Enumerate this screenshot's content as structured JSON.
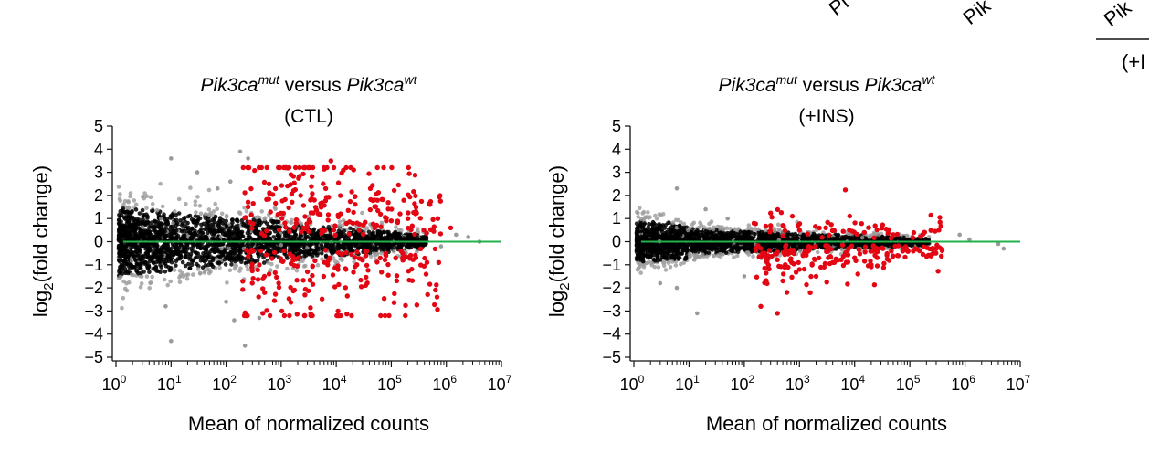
{
  "clipped_text": {
    "a": "Pi",
    "b": "Pik",
    "c": "Pik",
    "d": "(+I"
  },
  "colors": {
    "background_points": "#000000",
    "faded_points": "#9a9a9a",
    "significant_points": "#e30613",
    "reference_line": "#22b14c"
  },
  "chart_data": [
    {
      "type": "scatter",
      "title_parts": {
        "gene1": "Pik3ca",
        "sup1": "mut",
        "versus": " versus ",
        "gene2": "Pik3ca",
        "sup2": "wt"
      },
      "subtitle": "(CTL)",
      "xlabel": "Mean of normalized counts",
      "ylabel_parts": {
        "pre": "log",
        "sub": "2",
        "post": "(fold change)"
      },
      "x_scale": "log10",
      "xlim": [
        1,
        10000000
      ],
      "ylim": [
        -5,
        5
      ],
      "x_tick_bases": [
        "10",
        "10",
        "10",
        "10",
        "10",
        "10",
        "10",
        "10"
      ],
      "x_tick_exps": [
        "0",
        "1",
        "2",
        "3",
        "4",
        "5",
        "6",
        "7"
      ],
      "y_ticks": [
        "5",
        "4",
        "3",
        "2",
        "1",
        "0",
        "-1",
        "-2",
        "-3",
        "-4",
        "-5"
      ],
      "reference_line_y": 0,
      "series": [
        {
          "role": "all genes",
          "color": "#000000"
        },
        {
          "role": "significant",
          "color": "#e30613"
        }
      ],
      "sample_points": {
        "significant": [
          [
            250,
            1.5
          ],
          [
            600,
            2.5
          ],
          [
            1500,
            2.9
          ],
          [
            4000,
            1.8
          ],
          [
            8000,
            3.5
          ],
          [
            12000,
            1.2
          ],
          [
            20000,
            0.8
          ],
          [
            50000,
            0.6
          ],
          [
            100000,
            0.9
          ],
          [
            200000,
            1.0
          ],
          [
            700000,
            1.0
          ],
          [
            1200000,
            0.6
          ],
          [
            400,
            -1.0
          ],
          [
            500,
            -2.2
          ],
          [
            900,
            -1.8
          ],
          [
            3000,
            -1.3
          ],
          [
            7000,
            -1.0
          ],
          [
            15000,
            -1.2
          ],
          [
            30000,
            -0.8
          ],
          [
            80000,
            -0.6
          ],
          [
            150000,
            -0.4
          ]
        ],
        "faded": [
          [
            10,
            3.6
          ],
          [
            30,
            3.0
          ],
          [
            180,
            3.9
          ],
          [
            250,
            3.6
          ],
          [
            70,
            2.3
          ],
          [
            120,
            2.6
          ],
          [
            10,
            -4.3
          ],
          [
            8,
            -2.8
          ],
          [
            140,
            -3.4
          ],
          [
            220,
            -4.5
          ],
          [
            100,
            -2.6
          ],
          [
            400,
            -3.3
          ],
          [
            1500000,
            0.3
          ],
          [
            2500000,
            0.2
          ],
          [
            4000000,
            0.0
          ],
          [
            800000,
            -0.2
          ]
        ]
      }
    },
    {
      "type": "scatter",
      "title_parts": {
        "gene1": "Pik3ca",
        "sup1": "mut",
        "versus": " versus ",
        "gene2": "Pik3ca",
        "sup2": "wt"
      },
      "subtitle": "(+INS)",
      "xlabel": "Mean of normalized counts",
      "ylabel_parts": {
        "pre": "log",
        "sub": "2",
        "post": "(fold change)"
      },
      "x_scale": "log10",
      "xlim": [
        1,
        10000000
      ],
      "ylim": [
        -5,
        5
      ],
      "x_tick_bases": [
        "10",
        "10",
        "10",
        "10",
        "10",
        "10",
        "10",
        "10"
      ],
      "x_tick_exps": [
        "0",
        "1",
        "2",
        "3",
        "4",
        "5",
        "6",
        "7"
      ],
      "y_ticks": [
        "5",
        "4",
        "3",
        "2",
        "1",
        "0",
        "-1",
        "-2",
        "-3",
        "-4",
        "-5"
      ],
      "reference_line_y": 0,
      "series": [
        {
          "role": "all genes",
          "color": "#000000"
        },
        {
          "role": "significant",
          "color": "#e30613"
        }
      ],
      "sample_points": {
        "significant": [
          [
            150,
            0.8
          ],
          [
            300,
            0.7
          ],
          [
            1000,
            0.5
          ],
          [
            3000,
            0.6
          ],
          [
            8000,
            0.5
          ],
          [
            15000,
            0.4
          ],
          [
            200,
            -2.8
          ],
          [
            400,
            -3.1
          ],
          [
            500,
            -1.7
          ],
          [
            1000,
            -1.2
          ],
          [
            2000,
            -1.5
          ],
          [
            4000,
            -0.9
          ],
          [
            10000,
            -0.7
          ],
          [
            20000,
            -1.0
          ],
          [
            60000,
            -0.6
          ],
          [
            150000,
            -0.4
          ],
          [
            300000,
            -0.3
          ]
        ],
        "faded": [
          [
            6,
            2.3
          ],
          [
            20,
            1.4
          ],
          [
            50,
            1.0
          ],
          [
            14,
            -3.1
          ],
          [
            6,
            -2.0
          ],
          [
            3,
            -1.8
          ],
          [
            100,
            -1.5
          ],
          [
            800000,
            0.3
          ],
          [
            1200000,
            0.1
          ],
          [
            4000000,
            -0.1
          ],
          [
            5000000,
            -0.3
          ]
        ]
      }
    }
  ]
}
